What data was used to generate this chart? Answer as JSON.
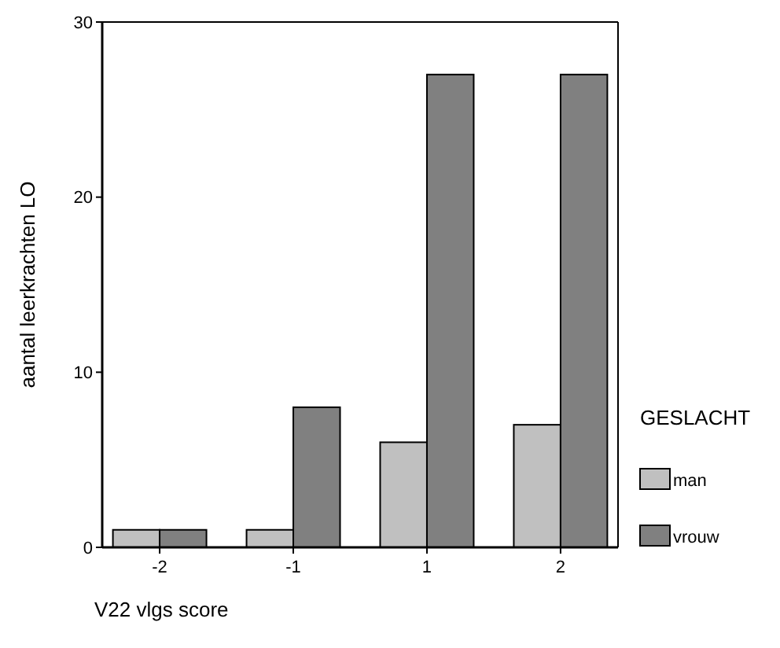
{
  "chart_data": {
    "type": "bar",
    "xlabel": "V22 vlgs score",
    "ylabel": "aantal leerkrachten LO",
    "legend_title": "GESLACHT",
    "legend": "right",
    "categories": [
      "-2",
      "-1",
      "1",
      "2"
    ],
    "series": [
      {
        "name": "man",
        "color": "#c0c0c0",
        "values": [
          1,
          1,
          6,
          7
        ]
      },
      {
        "name": "vrouw",
        "color": "#808080",
        "values": [
          1,
          8,
          27,
          27
        ]
      }
    ],
    "ylim": [
      0,
      30
    ],
    "yticks": [
      0,
      10,
      20,
      30
    ]
  }
}
